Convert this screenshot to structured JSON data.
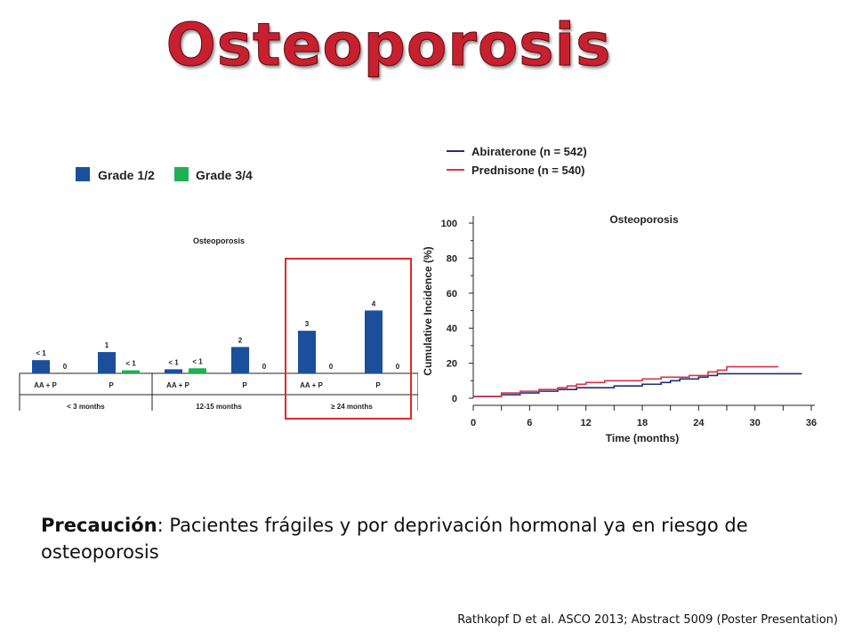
{
  "title": "Osteoporosis",
  "caution": {
    "label": "Precaución",
    "text": ": Pacientes frágiles y por deprivación hormonal ya en riesgo de osteoporosis"
  },
  "reference": "Rathkopf D et al. ASCO 2013; Abstract 5009 (Poster Presentation)",
  "colors": {
    "grade12": "#1b4f9c",
    "grade34": "#1fb050",
    "abiraterone": "#1f2f7a",
    "prednisone": "#d9334a",
    "highlight": "#d92b2b",
    "title": "#c8202f"
  },
  "chart_data": [
    {
      "type": "bar",
      "title": "Osteoporosis",
      "legend": [
        {
          "name": "Grade 1/2"
        },
        {
          "name": "Grade 3/4"
        }
      ],
      "groups": [
        {
          "label": "< 3 months",
          "categories": [
            {
              "label": "AA + P",
              "grade12": {
                "value": 13,
                "label": "< 1"
              },
              "grade34": {
                "value": 0,
                "label": "0"
              }
            },
            {
              "label": "P",
              "grade12": {
                "value": 21,
                "label": "1"
              },
              "grade34": {
                "value": 3,
                "label": "< 1"
              }
            }
          ]
        },
        {
          "label": "12-15 months",
          "categories": [
            {
              "label": "AA + P",
              "grade12": {
                "value": 4,
                "label": "< 1"
              },
              "grade34": {
                "value": 5,
                "label": "< 1"
              }
            },
            {
              "label": "P",
              "grade12": {
                "value": 26,
                "label": "2"
              },
              "grade34": {
                "value": 0,
                "label": "0"
              }
            }
          ]
        },
        {
          "label": "≥ 24 months",
          "categories": [
            {
              "label": "AA + P",
              "grade12": {
                "value": 42,
                "label": "3"
              },
              "grade34": {
                "value": 0,
                "label": "0"
              }
            },
            {
              "label": "P",
              "grade12": {
                "value": 62,
                "label": "4"
              },
              "grade34": {
                "value": 0,
                "label": "0"
              }
            }
          ]
        }
      ],
      "ylim": [
        0,
        70
      ]
    },
    {
      "type": "line",
      "title": "Osteoporosis",
      "xlabel": "Time (months)",
      "ylabel": "Cumulative Incidence (%)",
      "xlim": [
        0,
        36
      ],
      "ylim": [
        0,
        100
      ],
      "xticks": [
        0,
        6,
        12,
        18,
        24,
        30,
        36
      ],
      "yticks": [
        0,
        20,
        40,
        60,
        80,
        100
      ],
      "series": [
        {
          "name": "Abiraterone (n = 542)",
          "color": "#1f2f7a",
          "x": [
            0,
            2,
            3,
            5,
            7,
            9,
            10,
            11,
            13,
            15,
            17,
            18,
            20,
            21,
            22,
            24,
            25,
            26,
            30,
            35
          ],
          "y": [
            1,
            1,
            2,
            3,
            4,
            5,
            5,
            6,
            6,
            7,
            7,
            8,
            9,
            10,
            11,
            12,
            13,
            14,
            14,
            14
          ]
        },
        {
          "name": "Prednisone (n = 540)",
          "color": "#d9334a",
          "x": [
            0,
            2,
            3,
            5,
            7,
            9,
            10,
            11,
            12,
            14,
            16,
            18,
            20,
            21,
            23,
            25,
            26,
            27,
            30,
            32.5
          ],
          "y": [
            1,
            1,
            3,
            4,
            5,
            6,
            7,
            8,
            9,
            10,
            10,
            11,
            12,
            12,
            13,
            15,
            16,
            18,
            18,
            18
          ]
        }
      ]
    }
  ]
}
